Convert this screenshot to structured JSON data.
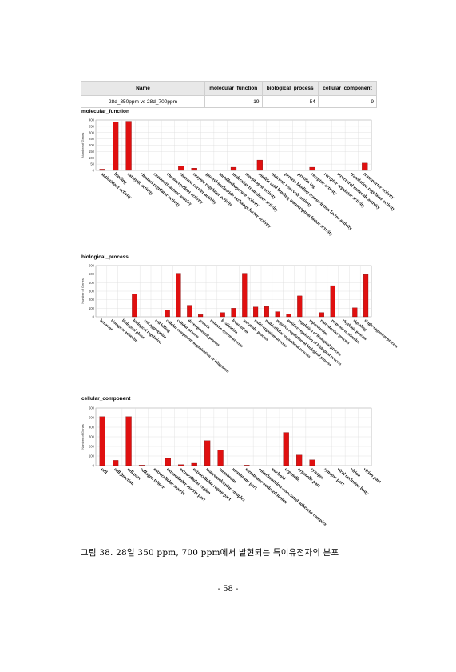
{
  "table": {
    "headers": [
      "Name",
      "molecular_function",
      "biological_process",
      "cellular_component"
    ],
    "rows": [
      [
        "28d_350ppm vs 28d_700ppm",
        "19",
        "54",
        "9"
      ]
    ]
  },
  "colors": {
    "bar": "#e01010",
    "grid": "#dcdcdc",
    "header_bg": "#e8e8e8"
  },
  "chart_data": [
    {
      "type": "bar",
      "title": "molecular_function",
      "ylabel": "Number of Genes",
      "ylim": [
        0,
        400
      ],
      "yticks": [
        "0",
        "50",
        "100",
        "150",
        "200",
        "250",
        "300",
        "350",
        "400"
      ],
      "categories": [
        "antioxidant activity",
        "binding",
        "catalytic activity",
        "channel regulator activity",
        "chemoattractant activity",
        "chemorepellent activity",
        "electron carrier activity",
        "enzyme regulator activity",
        "guanyl-nucleotide exchange factor activity",
        "metallochaperone activity",
        "molecular transducer activity",
        "morphogen activity",
        "nucleic acid binding transcription factor activity",
        "nutrient reservoir activity",
        "protein binding transcription factor activity",
        "protein tag",
        "receptor activity",
        "receptor regulator activity",
        "structural molecule activity",
        "translation regulator activity",
        "transporter activity"
      ],
      "values": [
        10,
        382,
        390,
        0,
        0,
        0,
        33,
        18,
        0,
        0,
        25,
        0,
        82,
        0,
        0,
        0,
        25,
        0,
        0,
        0,
        58
      ]
    },
    {
      "type": "bar",
      "title": "biological_process",
      "ylabel": "Number of Genes",
      "ylim": [
        0,
        600
      ],
      "yticks": [
        "0",
        "100",
        "200",
        "300",
        "400",
        "500",
        "600"
      ],
      "categories": [
        "behavior",
        "biological adhesion",
        "biological phase",
        "biological regulation",
        "cell aggregation",
        "cell killing",
        "cellular component organization or biogenesis",
        "cellular process",
        "developmental process",
        "growth",
        "immune system process",
        "localization",
        "locomotion",
        "metabolic process",
        "multi-organism process",
        "multicellular organismal process",
        "negative regulation of biological process",
        "positive regulation of biological process",
        "regulation of biological process",
        "reproduction",
        "reproductive process",
        "response to stimulus",
        "rhythmic process",
        "signaling",
        "single-organism process"
      ],
      "values": [
        0,
        0,
        0,
        270,
        0,
        0,
        80,
        510,
        135,
        25,
        0,
        50,
        100,
        510,
        115,
        120,
        60,
        30,
        245,
        0,
        50,
        365,
        0,
        105,
        495
      ]
    },
    {
      "type": "bar",
      "title": "cellular_component",
      "ylabel": "Number of Genes",
      "ylim": [
        0,
        600
      ],
      "yticks": [
        "0",
        "100",
        "200",
        "300",
        "400",
        "500",
        "600"
      ],
      "categories": [
        "cell",
        "cell junction",
        "cell part",
        "collagen trimer",
        "extracellular matrix",
        "extracellular matrix part",
        "extracellular region",
        "extracellular region part",
        "macromolecular complex",
        "membrane",
        "membrane part",
        "membrane-enclosed lumen",
        "mitochondrion-associated adherens complex",
        "nucleoid",
        "organelle",
        "organelle part",
        "synapse",
        "synapse part",
        "viral occlusion body",
        "virion",
        "virion part"
      ],
      "values": [
        510,
        55,
        510,
        5,
        0,
        75,
        10,
        25,
        260,
        160,
        0,
        5,
        0,
        0,
        345,
        110,
        60,
        0,
        0,
        0,
        0
      ]
    }
  ],
  "caption": "그림 38. 28일 350 ppm, 700 ppm에서 발현되는 특이유전자의 분포",
  "page_number": "- 58 -"
}
